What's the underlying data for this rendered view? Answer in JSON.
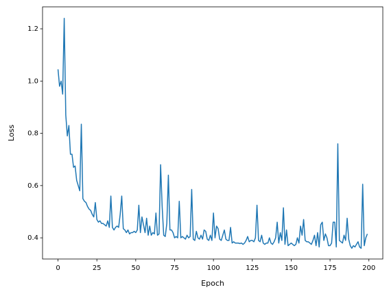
{
  "chart_data": {
    "type": "line",
    "xlabel": "Epoch",
    "ylabel": "Loss",
    "x": [
      0,
      1,
      2,
      3,
      4,
      5,
      6,
      7,
      8,
      9,
      10,
      11,
      12,
      13,
      14,
      15,
      16,
      17,
      18,
      19,
      20,
      21,
      22,
      23,
      24,
      25,
      26,
      27,
      28,
      29,
      30,
      31,
      32,
      33,
      34,
      35,
      36,
      37,
      38,
      39,
      40,
      41,
      42,
      43,
      44,
      45,
      46,
      47,
      48,
      49,
      50,
      51,
      52,
      53,
      54,
      55,
      56,
      57,
      58,
      59,
      60,
      61,
      62,
      63,
      64,
      65,
      66,
      67,
      68,
      69,
      70,
      71,
      72,
      73,
      74,
      75,
      76,
      77,
      78,
      79,
      80,
      81,
      82,
      83,
      84,
      85,
      86,
      87,
      88,
      89,
      90,
      91,
      92,
      93,
      94,
      95,
      96,
      97,
      98,
      99,
      100,
      101,
      102,
      103,
      104,
      105,
      106,
      107,
      108,
      109,
      110,
      111,
      112,
      113,
      114,
      115,
      116,
      117,
      118,
      119,
      120,
      121,
      122,
      123,
      124,
      125,
      126,
      127,
      128,
      129,
      130,
      131,
      132,
      133,
      134,
      135,
      136,
      137,
      138,
      139,
      140,
      141,
      142,
      143,
      144,
      145,
      146,
      147,
      148,
      149,
      150,
      151,
      152,
      153,
      154,
      155,
      156,
      157,
      158,
      159,
      160,
      161,
      162,
      163,
      164,
      165,
      166,
      167,
      168,
      169,
      170,
      171,
      172,
      173,
      174,
      175,
      176,
      177,
      178,
      179,
      180,
      181,
      182,
      183,
      184,
      185,
      186,
      187,
      188,
      189,
      190,
      191,
      192,
      193,
      194,
      195,
      196,
      197,
      198,
      199
    ],
    "series": [
      {
        "color": "#1f77b4",
        "values": [
          1.045,
          0.98,
          1.0,
          0.95,
          1.24,
          0.87,
          0.79,
          0.83,
          0.72,
          0.72,
          0.67,
          0.675,
          0.62,
          0.6,
          0.58,
          0.835,
          0.55,
          0.54,
          0.535,
          0.52,
          0.51,
          0.505,
          0.49,
          0.48,
          0.535,
          0.47,
          0.46,
          0.465,
          0.455,
          0.455,
          0.45,
          0.445,
          0.465,
          0.44,
          0.56,
          0.44,
          0.43,
          0.44,
          0.445,
          0.44,
          0.49,
          0.56,
          0.435,
          0.43,
          0.42,
          0.43,
          0.415,
          0.42,
          0.42,
          0.425,
          0.42,
          0.43,
          0.525,
          0.42,
          0.48,
          0.45,
          0.42,
          0.475,
          0.41,
          0.445,
          0.41,
          0.42,
          0.415,
          0.495,
          0.41,
          0.415,
          0.68,
          0.52,
          0.41,
          0.405,
          0.455,
          0.64,
          0.43,
          0.43,
          0.42,
          0.4,
          0.405,
          0.4,
          0.54,
          0.4,
          0.405,
          0.4,
          0.395,
          0.41,
          0.4,
          0.405,
          0.585,
          0.395,
          0.39,
          0.425,
          0.4,
          0.395,
          0.41,
          0.395,
          0.43,
          0.425,
          0.395,
          0.39,
          0.41,
          0.39,
          0.495,
          0.4,
          0.445,
          0.435,
          0.395,
          0.39,
          0.41,
          0.43,
          0.395,
          0.39,
          0.39,
          0.44,
          0.38,
          0.385,
          0.38,
          0.38,
          0.38,
          0.378,
          0.38,
          0.375,
          0.38,
          0.39,
          0.405,
          0.385,
          0.39,
          0.39,
          0.385,
          0.4,
          0.525,
          0.39,
          0.385,
          0.41,
          0.38,
          0.375,
          0.38,
          0.38,
          0.4,
          0.38,
          0.375,
          0.385,
          0.4,
          0.46,
          0.38,
          0.42,
          0.39,
          0.515,
          0.375,
          0.43,
          0.37,
          0.375,
          0.38,
          0.375,
          0.37,
          0.375,
          0.4,
          0.38,
          0.445,
          0.41,
          0.47,
          0.39,
          0.385,
          0.385,
          0.38,
          0.375,
          0.39,
          0.41,
          0.37,
          0.42,
          0.365,
          0.45,
          0.46,
          0.39,
          0.415,
          0.4,
          0.37,
          0.37,
          0.38,
          0.46,
          0.46,
          0.365,
          0.76,
          0.39,
          0.385,
          0.38,
          0.41,
          0.39,
          0.475,
          0.395,
          0.37,
          0.36,
          0.37,
          0.365,
          0.375,
          0.385,
          0.365,
          0.36,
          0.605,
          0.37,
          0.4,
          0.415
        ]
      }
    ],
    "xlim": [
      -9.95,
      208.95
    ],
    "ylim": [
      0.319,
      1.284
    ],
    "xticks": [
      0,
      25,
      50,
      75,
      100,
      125,
      150,
      175,
      200
    ],
    "yticks": [
      0.4,
      0.6,
      0.8,
      {
        "value": 1,
        "label": "1.0"
      },
      1.2
    ]
  }
}
